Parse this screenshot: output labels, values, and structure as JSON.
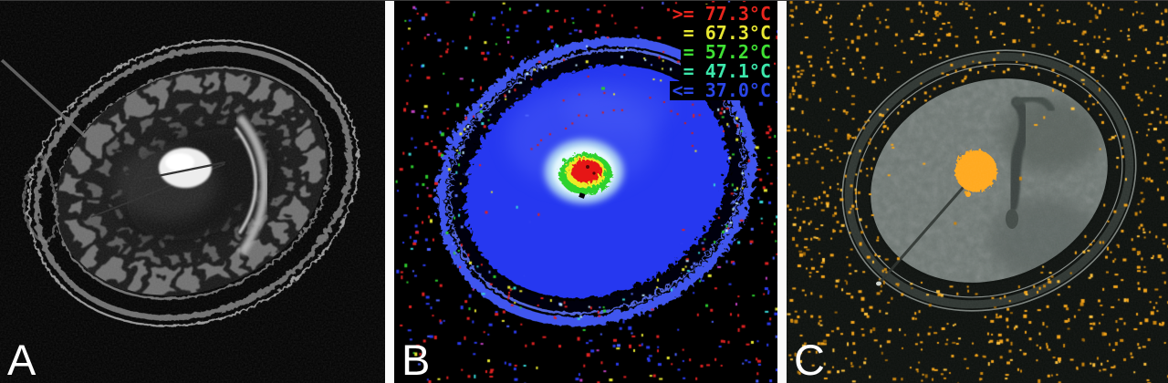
{
  "panels": [
    {
      "id": "A",
      "label": "A"
    },
    {
      "id": "B",
      "label": "B",
      "legend": [
        {
          "text": ">= 77.3°C",
          "color": "#e8251d"
        },
        {
          "text": "= 67.3°C",
          "color": "#e6e632"
        },
        {
          "text": "= 57.2°C",
          "color": "#3fe034"
        },
        {
          "text": "= 47.1°C",
          "color": "#3ce8ac"
        },
        {
          "text": "<= 37.0°C",
          "color": "#2a46e8"
        }
      ]
    },
    {
      "id": "C",
      "label": "C"
    }
  ],
  "colors": {
    "background": "#000000",
    "panel_c_background": "#0b0f0c",
    "thermal_brain_blue": "#2637f0",
    "thermal_scalp_blue": "#4056ee",
    "hotspot_red": "#e61717",
    "hotspot_yellow": "#ecec28",
    "hotspot_green": "#2fd22f",
    "hotspot_halo": "#c8f0f4",
    "ablation_orange": "#ffa81f",
    "label_white": "#ffffff"
  },
  "speckles": {
    "panel_b": {
      "count": 430,
      "palette": [
        [
          "#e02222",
          38
        ],
        [
          "#2b3cf0",
          30
        ],
        [
          "#4b62ff",
          10
        ],
        [
          "#2ecb2e",
          7
        ],
        [
          "#e8e832",
          6
        ],
        [
          "#38d8d8",
          5
        ],
        [
          "#c040c0",
          4
        ]
      ]
    },
    "panel_b_band": {
      "count": 150,
      "palette": [
        [
          "#bfe8ff",
          22
        ],
        [
          "#e02222",
          28
        ],
        [
          "#2ecb2e",
          16
        ],
        [
          "#e8e832",
          16
        ],
        [
          "#38d8d8",
          10
        ],
        [
          "#5a74ff",
          8
        ]
      ]
    },
    "panel_c": {
      "count": 820,
      "palette": [
        [
          "#f2a41c",
          55
        ],
        [
          "#cc860f",
          22
        ],
        [
          "#ffc33e",
          16
        ],
        [
          "#9a650a",
          7
        ]
      ]
    },
    "panel_c_band": {
      "count": 120,
      "palette": [
        [
          "#f2a41c",
          60
        ],
        [
          "#ffc33e",
          25
        ],
        [
          "#cc860f",
          15
        ]
      ]
    }
  }
}
